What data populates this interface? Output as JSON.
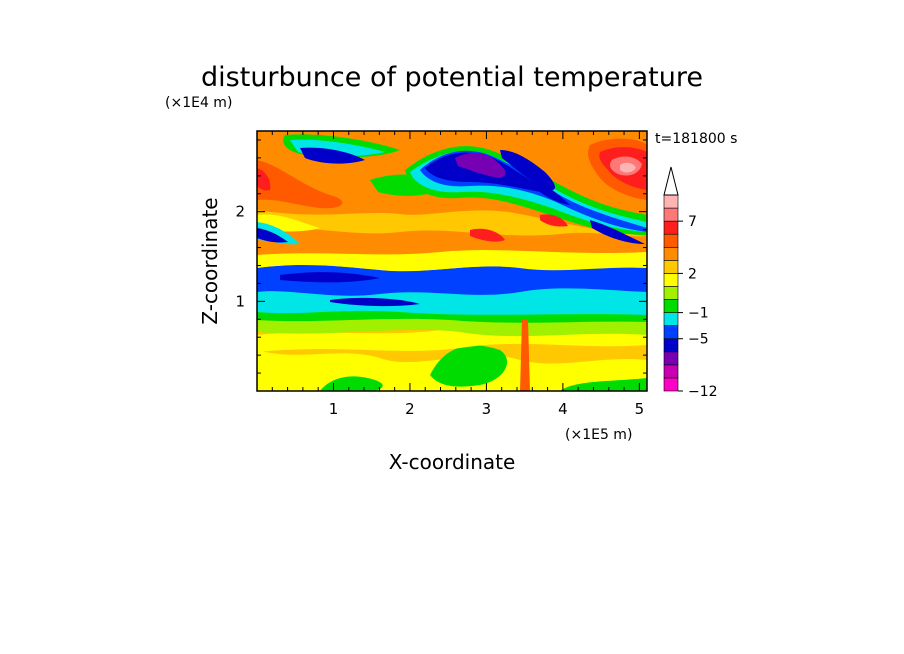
{
  "chart_data": {
    "type": "heatmap",
    "title": "disturbunce of potential temperature",
    "xlabel": "X-coordinate",
    "ylabel": "Z-coordinate",
    "x_unit": "(×1E5 m)",
    "y_unit": "(×1E4 m)",
    "time_label": "t=181800 s",
    "xlim": [
      0,
      5.1
    ],
    "ylim": [
      0,
      2.9
    ],
    "x_ticks": [
      1,
      2,
      3,
      4,
      5
    ],
    "y_ticks": [
      1,
      2
    ],
    "colorbar": {
      "levels": [
        -12,
        -10,
        -8,
        -6,
        -5,
        -3,
        -1,
        0,
        1,
        2,
        3,
        4,
        5,
        7,
        8,
        9
      ],
      "tick_labels": [
        "7",
        "2",
        "−1",
        "−5",
        "−12"
      ],
      "tick_values": [
        7,
        2,
        -1,
        -5,
        -12
      ],
      "colors": [
        "#ff00c8",
        "#c800b4",
        "#7800b4",
        "#0000c8",
        "#0040ff",
        "#00e6e6",
        "#00dc00",
        "#a0f000",
        "#ffff00",
        "#ffc800",
        "#ff8c00",
        "#ff5a00",
        "#ff1e1e",
        "#ff7878",
        "#ffb4b4"
      ],
      "extend": "max"
    },
    "bands": [
      {
        "z": [
          0.0,
          0.3
        ],
        "value": 2.5,
        "description_color": "#ffff00"
      },
      {
        "z": [
          0.3,
          0.75
        ],
        "value": 3.5,
        "description_color": "#ffc800"
      },
      {
        "z": [
          0.75,
          0.95
        ],
        "value": 0.5,
        "description_color": "#a0f000"
      },
      {
        "z": [
          0.95,
          1.25
        ],
        "value": -0.5,
        "description_color": "#00e6e6"
      },
      {
        "z": [
          1.25,
          1.45
        ],
        "value": -3.5,
        "description_color": "#0040ff"
      },
      {
        "z": [
          1.45,
          1.85
        ],
        "value": 3.5,
        "description_color": "#ffc800"
      },
      {
        "z": [
          1.85,
          2.9
        ],
        "value": 4.5,
        "description_color": "#ff8c00"
      }
    ]
  }
}
